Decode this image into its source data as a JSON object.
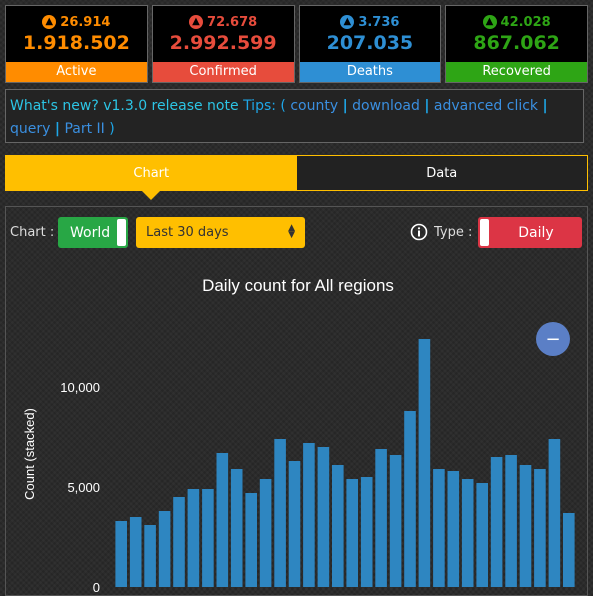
{
  "stats": [
    {
      "label": "Active",
      "delta": "26.914",
      "total": "1.918.502",
      "color": "#ff8c00"
    },
    {
      "label": "Confirmed",
      "delta": "72.678",
      "total": "2.992.599",
      "color": "#e74c3c"
    },
    {
      "label": "Deaths",
      "delta": "3.736",
      "total": "207.035",
      "color": "#2e8fd4"
    },
    {
      "label": "Recovered",
      "delta": "42.028",
      "total": "867.062",
      "color": "#2ea515"
    }
  ],
  "news": {
    "whats_new": "What's new?",
    "version": "v1.3.0 release note",
    "tips": "Tips: (",
    "links": [
      "county",
      "download",
      "advanced click",
      "query",
      "Part II"
    ],
    "close": ")"
  },
  "tabs": {
    "chart": "Chart",
    "data": "Data"
  },
  "controls": {
    "chart_label": "Chart :",
    "region_button": "World",
    "range_select": "Last 30 days",
    "type_label": "Type :",
    "type_button": "Daily",
    "zoom_out": "−"
  },
  "chart_data": {
    "type": "bar",
    "title": "Daily count for All regions",
    "ylabel": "Count (stacked)",
    "xlabel": "",
    "ylim": [
      0,
      12500
    ],
    "yticks": [
      0,
      5000,
      10000
    ],
    "ytick_labels": [
      "0",
      "5,000",
      "10,000"
    ],
    "color": "#2e86c1",
    "values": [
      3300,
      3500,
      3100,
      3800,
      4500,
      4900,
      4900,
      6700,
      5900,
      4700,
      5400,
      7400,
      6300,
      7200,
      7000,
      6100,
      5400,
      5500,
      6900,
      6600,
      8800,
      12400,
      5900,
      5800,
      5400,
      5200,
      6500,
      6600,
      6100,
      5900,
      7400,
      3700
    ]
  }
}
